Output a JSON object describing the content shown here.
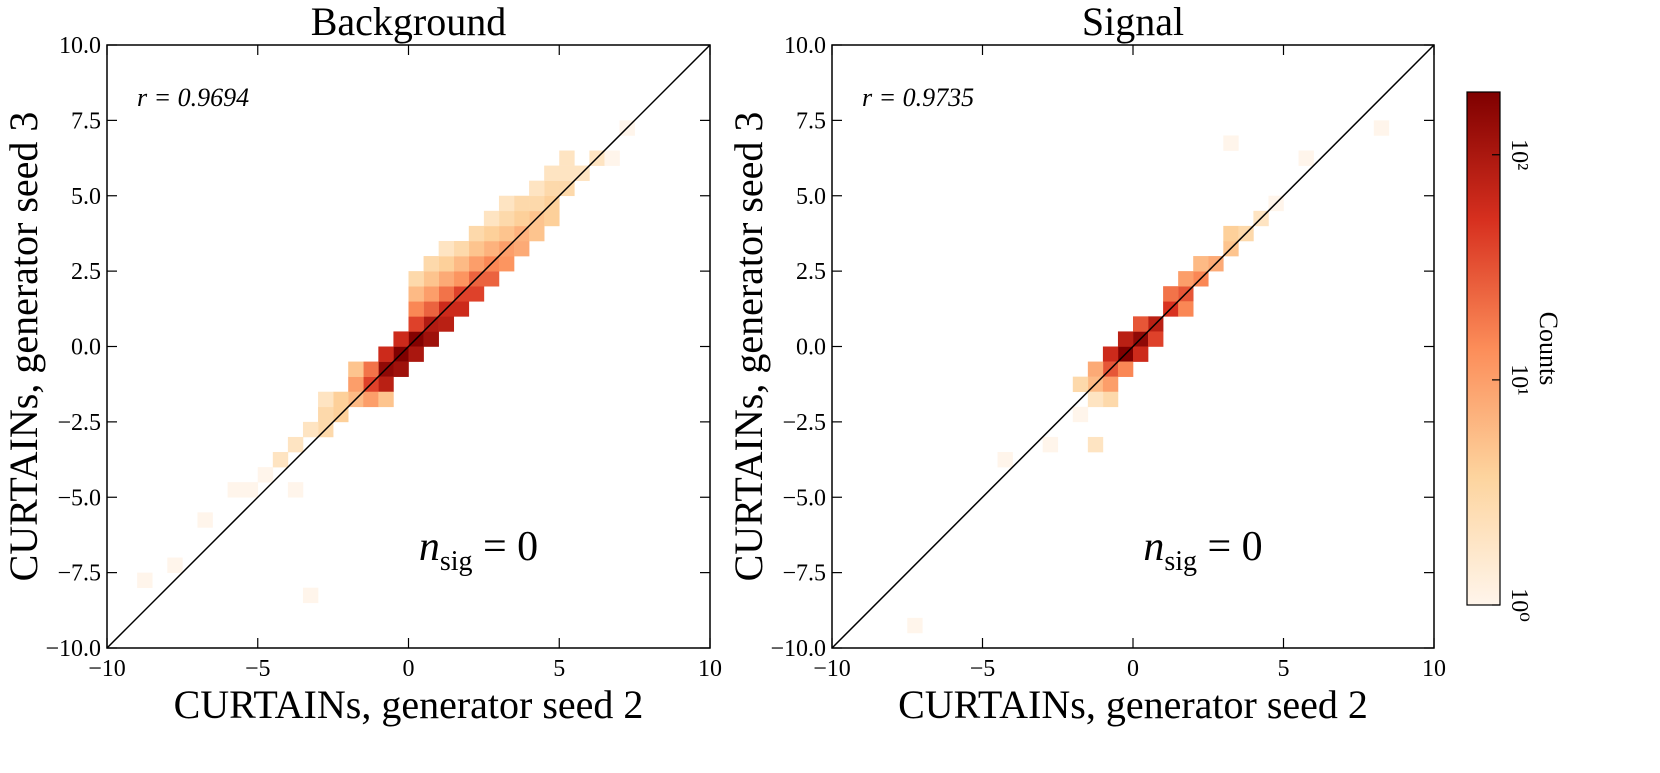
{
  "chart_data": [
    {
      "type": "hist2d",
      "title": "Background",
      "xlabel": "CURTAINs, generator seed 2",
      "ylabel": "CURTAINs, generator seed 3",
      "annotation": "r = 0.9694",
      "note": {
        "base": "n",
        "sub": "sig",
        "rest": " = 0"
      },
      "xlim": [
        -10,
        10
      ],
      "ylim": [
        -10,
        10
      ],
      "xticks": [
        {
          "value": -10,
          "label": "−10"
        },
        {
          "value": -5,
          "label": "−5"
        },
        0,
        5,
        10
      ],
      "yticks": [
        {
          "value": -10,
          "label": "−10.0"
        },
        {
          "value": -7.5,
          "label": "−7.5"
        },
        {
          "value": -5,
          "label": "−5.0"
        },
        {
          "value": -2.5,
          "label": "−2.5"
        },
        {
          "value": 0,
          "label": "0.0"
        },
        2.5,
        {
          "value": 5,
          "label": "5.0"
        },
        7.5,
        {
          "value": 10,
          "label": "10.0"
        }
      ],
      "bin_width": 0.5,
      "cells": [
        [
          -1,
          -1,
          150
        ],
        [
          -0.5,
          -0.5,
          190
        ],
        [
          0,
          0,
          180
        ],
        [
          -0.5,
          -1,
          120
        ],
        [
          -1,
          -1.5,
          80
        ],
        [
          -1.5,
          -1.5,
          40
        ],
        [
          0,
          -0.5,
          100
        ],
        [
          0.5,
          0,
          120
        ],
        [
          0.5,
          0.5,
          90
        ],
        [
          1,
          0.5,
          80
        ],
        [
          1,
          1,
          60
        ],
        [
          1.5,
          1,
          60
        ],
        [
          1.5,
          1.5,
          40
        ],
        [
          2,
          1.5,
          40
        ],
        [
          2,
          2,
          25
        ],
        [
          2.5,
          2,
          25
        ],
        [
          2.5,
          2.5,
          15
        ],
        [
          3,
          2.5,
          12
        ],
        [
          3,
          3,
          10
        ],
        [
          3.5,
          3,
          8
        ],
        [
          3.5,
          3.5,
          7
        ],
        [
          4,
          3.5,
          5
        ],
        [
          4,
          4,
          5
        ],
        [
          4.5,
          4,
          4
        ],
        [
          4.5,
          4.5,
          4
        ],
        [
          5,
          5,
          3
        ],
        [
          5.5,
          5.5,
          2
        ],
        [
          6,
          6,
          2
        ],
        [
          -0.5,
          0,
          60
        ],
        [
          0,
          0.5,
          40
        ],
        [
          0.5,
          1,
          25
        ],
        [
          1,
          1.5,
          20
        ],
        [
          1.5,
          2,
          12
        ],
        [
          2,
          2.5,
          10
        ],
        [
          2.5,
          3,
          7
        ],
        [
          3,
          3.5,
          5
        ],
        [
          3.5,
          4,
          4
        ],
        [
          4,
          4.5,
          3
        ],
        [
          4.5,
          5,
          3
        ],
        [
          5,
          5.5,
          2
        ],
        [
          0,
          1,
          15
        ],
        [
          0.5,
          1.5,
          10
        ],
        [
          1,
          2,
          8
        ],
        [
          1.5,
          2.5,
          6
        ],
        [
          2,
          3,
          5
        ],
        [
          2.5,
          3.5,
          4
        ],
        [
          3,
          4,
          3
        ],
        [
          3.5,
          4.5,
          3
        ],
        [
          4,
          5,
          2
        ],
        [
          4.5,
          5.5,
          2
        ],
        [
          5,
          6,
          2
        ],
        [
          0,
          1.5,
          6
        ],
        [
          0.5,
          2,
          5
        ],
        [
          1,
          2.5,
          4
        ],
        [
          1.5,
          3,
          3
        ],
        [
          2,
          3.5,
          3
        ],
        [
          2.5,
          4,
          2
        ],
        [
          3,
          4.5,
          2
        ],
        [
          0,
          2,
          3
        ],
        [
          0.5,
          2.5,
          3
        ],
        [
          1,
          3,
          2
        ],
        [
          -1.5,
          -1,
          20
        ],
        [
          -2,
          -1.5,
          10
        ],
        [
          -2,
          -2,
          6
        ],
        [
          -2.5,
          -2,
          4
        ],
        [
          -2.5,
          -2.5,
          4
        ],
        [
          -3,
          -2.5,
          3
        ],
        [
          -3,
          -3,
          3
        ],
        [
          -3.5,
          -3,
          2
        ],
        [
          -4,
          -3.5,
          2
        ],
        [
          -4.5,
          -4,
          2
        ],
        [
          -5,
          -4.5,
          1
        ],
        [
          -5.5,
          -5,
          1
        ],
        [
          -6,
          -5,
          1
        ],
        [
          -7,
          -6,
          1
        ],
        [
          -8,
          -7.5,
          1
        ],
        [
          -9,
          -8,
          1
        ],
        [
          -3,
          -2,
          2
        ],
        [
          -2,
          -1,
          5
        ],
        [
          -1,
          -0.5,
          60
        ],
        [
          -1.5,
          -2,
          10
        ],
        [
          -1,
          -2,
          5
        ],
        [
          6.5,
          6,
          1
        ],
        [
          7,
          7,
          1
        ],
        [
          -4,
          -5,
          1
        ],
        [
          -3.5,
          -8.5,
          1
        ]
      ]
    },
    {
      "type": "hist2d",
      "title": "Signal",
      "xlabel": "CURTAINs, generator seed 2",
      "ylabel": "CURTAINs, generator seed 3",
      "annotation": "r = 0.9735",
      "note": {
        "base": "n",
        "sub": "sig",
        "rest": " = 0"
      },
      "xlim": [
        -10,
        10
      ],
      "ylim": [
        -10,
        10
      ],
      "xticks": [
        {
          "value": -10,
          "label": "−10"
        },
        {
          "value": -5,
          "label": "−5"
        },
        0,
        5,
        10
      ],
      "yticks": [
        {
          "value": -10,
          "label": "−10.0"
        },
        {
          "value": -7.5,
          "label": "−7.5"
        },
        {
          "value": -5,
          "label": "−5.0"
        },
        {
          "value": -2.5,
          "label": "−2.5"
        },
        {
          "value": 0,
          "label": "0.0"
        },
        2.5,
        {
          "value": 5,
          "label": "5.0"
        },
        7.5,
        {
          "value": 10,
          "label": "10.0"
        }
      ],
      "bin_width": 0.5,
      "cells": [
        [
          -0.5,
          -0.5,
          190
        ],
        [
          0,
          0,
          150
        ],
        [
          -1,
          -0.5,
          60
        ],
        [
          -0.5,
          0,
          80
        ],
        [
          0,
          -0.5,
          60
        ],
        [
          0.5,
          0.5,
          80
        ],
        [
          1,
          1,
          50
        ],
        [
          0.5,
          0,
          40
        ],
        [
          1.5,
          1.5,
          30
        ],
        [
          1,
          1.5,
          20
        ],
        [
          2,
          2,
          15
        ],
        [
          1.5,
          2,
          10
        ],
        [
          2.5,
          2.5,
          8
        ],
        [
          2,
          2.5,
          6
        ],
        [
          3,
          3,
          5
        ],
        [
          3,
          3.5,
          4
        ],
        [
          3.5,
          3.5,
          3
        ],
        [
          4,
          4,
          2
        ],
        [
          4.5,
          4.5,
          1
        ],
        [
          -1,
          -1,
          30
        ],
        [
          -1.5,
          -1,
          8
        ],
        [
          -1.5,
          -1.5,
          6
        ],
        [
          -1,
          -1.5,
          10
        ],
        [
          -2,
          -1.5,
          3
        ],
        [
          -0.5,
          -1,
          15
        ],
        [
          -1,
          -2,
          3
        ],
        [
          -1.5,
          -3.5,
          2
        ],
        [
          -2,
          -2.5,
          1
        ],
        [
          -3,
          -3.5,
          1
        ],
        [
          -4.5,
          -4,
          1
        ],
        [
          -7.5,
          -9.5,
          1
        ],
        [
          1.5,
          1,
          15
        ],
        [
          0,
          0.5,
          30
        ],
        [
          3,
          6.5,
          1
        ],
        [
          5.5,
          6,
          1
        ],
        [
          8,
          7,
          1
        ],
        [
          -1.5,
          -2,
          2
        ]
      ]
    }
  ],
  "colorbar": {
    "label": "Counts",
    "log": true,
    "lim": [
      1,
      190
    ],
    "ticks": [
      {
        "value": 1,
        "label": "10⁰"
      },
      {
        "value": 10,
        "label": "10¹"
      },
      {
        "value": 100,
        "label": "10²"
      }
    ],
    "colormap": [
      "#fff5eb",
      "#fdd49e",
      "#fc8d59",
      "#d7301f",
      "#7f0000"
    ]
  }
}
